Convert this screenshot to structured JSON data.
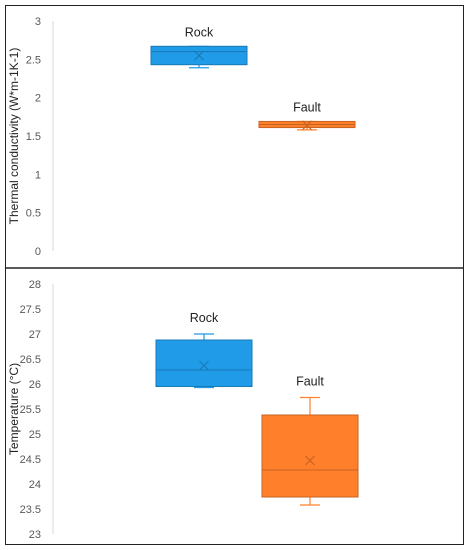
{
  "chart_data": [
    {
      "type": "box",
      "ylabel": "Thermal conductivity (W*m-1K-1)",
      "ylim": [
        0,
        3
      ],
      "yticks": [
        0,
        0.5,
        1,
        1.5,
        2,
        2.5,
        3
      ],
      "ytick_labels": [
        "0",
        "0.5",
        "1",
        "1.5",
        "2",
        "2.5",
        "3"
      ],
      "grid": false,
      "series": [
        {
          "name": "Rock",
          "color": "#1f9be8",
          "min": 2.39,
          "q1": 2.43,
          "median": 2.6,
          "q3": 2.67,
          "max": 2.67,
          "mean": 2.55
        },
        {
          "name": "Fault",
          "color": "#ff7f2a",
          "min": 1.58,
          "q1": 1.61,
          "median": 1.65,
          "q3": 1.69,
          "max": 1.69,
          "mean": 1.64
        }
      ]
    },
    {
      "type": "box",
      "ylabel": "Temperature (°C)",
      "ylim": [
        23,
        28
      ],
      "yticks": [
        23,
        23.5,
        24,
        24.5,
        25,
        25.5,
        26,
        26.5,
        27,
        27.5,
        28
      ],
      "ytick_labels": [
        "23",
        "23.5",
        "24",
        "24.5",
        "25",
        "25.5",
        "26",
        "26.5",
        "27",
        "27.5",
        "28"
      ],
      "grid": false,
      "series": [
        {
          "name": "Rock",
          "color": "#1f9be8",
          "min": 25.93,
          "q1": 25.95,
          "median": 26.28,
          "q3": 26.88,
          "max": 27.0,
          "mean": 26.37
        },
        {
          "name": "Fault",
          "color": "#ff7f2a",
          "min": 23.58,
          "q1": 23.74,
          "median": 24.28,
          "q3": 25.38,
          "max": 25.73,
          "mean": 24.47
        }
      ]
    }
  ]
}
